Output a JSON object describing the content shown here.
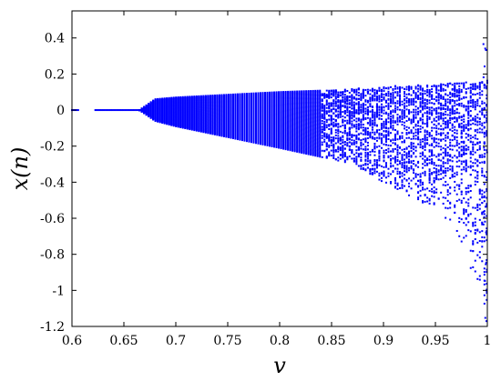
{
  "chart_data": {
    "type": "scatter",
    "title": "",
    "xlabel": "v",
    "ylabel": "x(n)",
    "xlim": [
      0.6,
      1.0
    ],
    "ylim": [
      -1.2,
      0.55
    ],
    "x_ticks": [
      0.6,
      0.65,
      0.7,
      0.75,
      0.8,
      0.85,
      0.9,
      0.95,
      1.0
    ],
    "x_tick_labels": [
      "0.6",
      "0.65",
      "0.7",
      "0.75",
      "0.8",
      "0.85",
      "0.9",
      "0.95",
      "1"
    ],
    "y_ticks": [
      0.4,
      0.2,
      0,
      -0.2,
      -0.4,
      -0.6,
      -0.8,
      -1,
      -1.2
    ],
    "y_tick_labels": [
      "0.4",
      "0.2",
      "0",
      "-0.2",
      "-0.4",
      "-0.6",
      "-0.8",
      "-1",
      "-1.2"
    ],
    "grid": false,
    "marker_color": "#0000ff",
    "series": [
      {
        "fixed_point": {
          "x_range": [
            0.6,
            0.665
          ],
          "y": 0
        },
        "band_upper": [
          [
            0.665,
            0.0
          ],
          [
            0.68,
            0.06
          ],
          [
            0.7,
            0.07
          ],
          [
            0.75,
            0.085
          ],
          [
            0.8,
            0.1
          ],
          [
            0.85,
            0.11
          ],
          [
            0.9,
            0.13
          ],
          [
            0.95,
            0.145
          ],
          [
            1.0,
            0.16
          ]
        ],
        "band_lower": [
          [
            0.665,
            0.0
          ],
          [
            0.68,
            -0.06
          ],
          [
            0.7,
            -0.09
          ],
          [
            0.75,
            -0.15
          ],
          [
            0.8,
            -0.21
          ],
          [
            0.84,
            -0.26
          ],
          [
            0.87,
            -0.3
          ],
          [
            0.9,
            -0.4
          ],
          [
            0.95,
            -0.55
          ],
          [
            0.98,
            -0.8
          ],
          [
            1.0,
            -1.2
          ]
        ],
        "max_y": 0.4
      }
    ]
  }
}
